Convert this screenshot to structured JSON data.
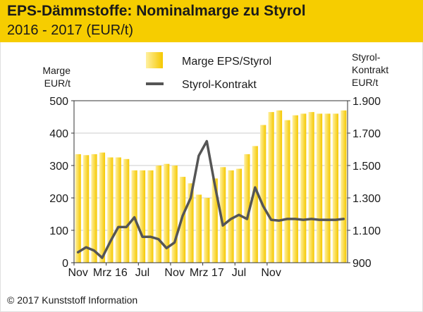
{
  "header": {
    "title": "EPS-Dämmstoffe: Nominalmarge zu Styrol",
    "subtitle": "2016 - 2017 (EUR/t)"
  },
  "footer": {
    "copyright": "© 2017 Kunststoff Information"
  },
  "colors": {
    "header_bg": "#f6cd00",
    "bar_light": "#fff0a0",
    "bar_dark": "#f5c800",
    "line": "#555555",
    "grid": "#cccccc",
    "axis": "#333333"
  },
  "chart_data": {
    "type": "bar",
    "left_axis_label": [
      "Marge",
      "EUR/t"
    ],
    "right_axis_label": [
      "Styrol-",
      "Kontrakt",
      "EUR/t"
    ],
    "left_ylim": [
      0,
      500
    ],
    "left_ticks": [
      {
        "value": 0,
        "label": "0"
      },
      {
        "value": 100,
        "label": "100"
      },
      {
        "value": 200,
        "label": "200"
      },
      {
        "value": 300,
        "label": "300"
      },
      {
        "value": 400,
        "label": "400"
      },
      {
        "value": 500,
        "label": "500"
      }
    ],
    "right_ylim": [
      900,
      1900
    ],
    "right_ticks": [
      {
        "value": 900,
        "label": "900"
      },
      {
        "value": 1100,
        "label": "1.100"
      },
      {
        "value": 1300,
        "label": "1.300"
      },
      {
        "value": 1500,
        "label": "1.500"
      },
      {
        "value": 1700,
        "label": "1.700"
      },
      {
        "value": 1900,
        "label": "1.900"
      }
    ],
    "x_ticks": [
      {
        "index": 0,
        "label": "Nov"
      },
      {
        "index": 4,
        "label": "Mrz 16"
      },
      {
        "index": 8,
        "label": "Jul"
      },
      {
        "index": 12,
        "label": "Nov"
      },
      {
        "index": 16,
        "label": "Mrz 17"
      },
      {
        "index": 20,
        "label": "Jul"
      },
      {
        "index": 24,
        "label": "Nov"
      }
    ],
    "grid": true,
    "legend_position": "top",
    "series": [
      {
        "name": "Marge EPS/Styrol",
        "kind": "bar",
        "axis": "left",
        "values": [
          335,
          332,
          335,
          340,
          325,
          325,
          320,
          285,
          285,
          285,
          300,
          305,
          300,
          265,
          245,
          210,
          200,
          260,
          295,
          285,
          290,
          335,
          360,
          425,
          465,
          470,
          440,
          455,
          460,
          465,
          460,
          460,
          460,
          470
        ]
      },
      {
        "name": "Styrol-Kontrakt",
        "kind": "line",
        "axis": "right",
        "values": [
          965,
          995,
          975,
          930,
          1030,
          1120,
          1120,
          1180,
          1060,
          1060,
          1045,
          990,
          1025,
          1190,
          1300,
          1560,
          1650,
          1380,
          1130,
          1170,
          1195,
          1170,
          1365,
          1250,
          1165,
          1160,
          1170,
          1170,
          1165,
          1170,
          1165,
          1165,
          1165,
          1170
        ]
      }
    ]
  }
}
